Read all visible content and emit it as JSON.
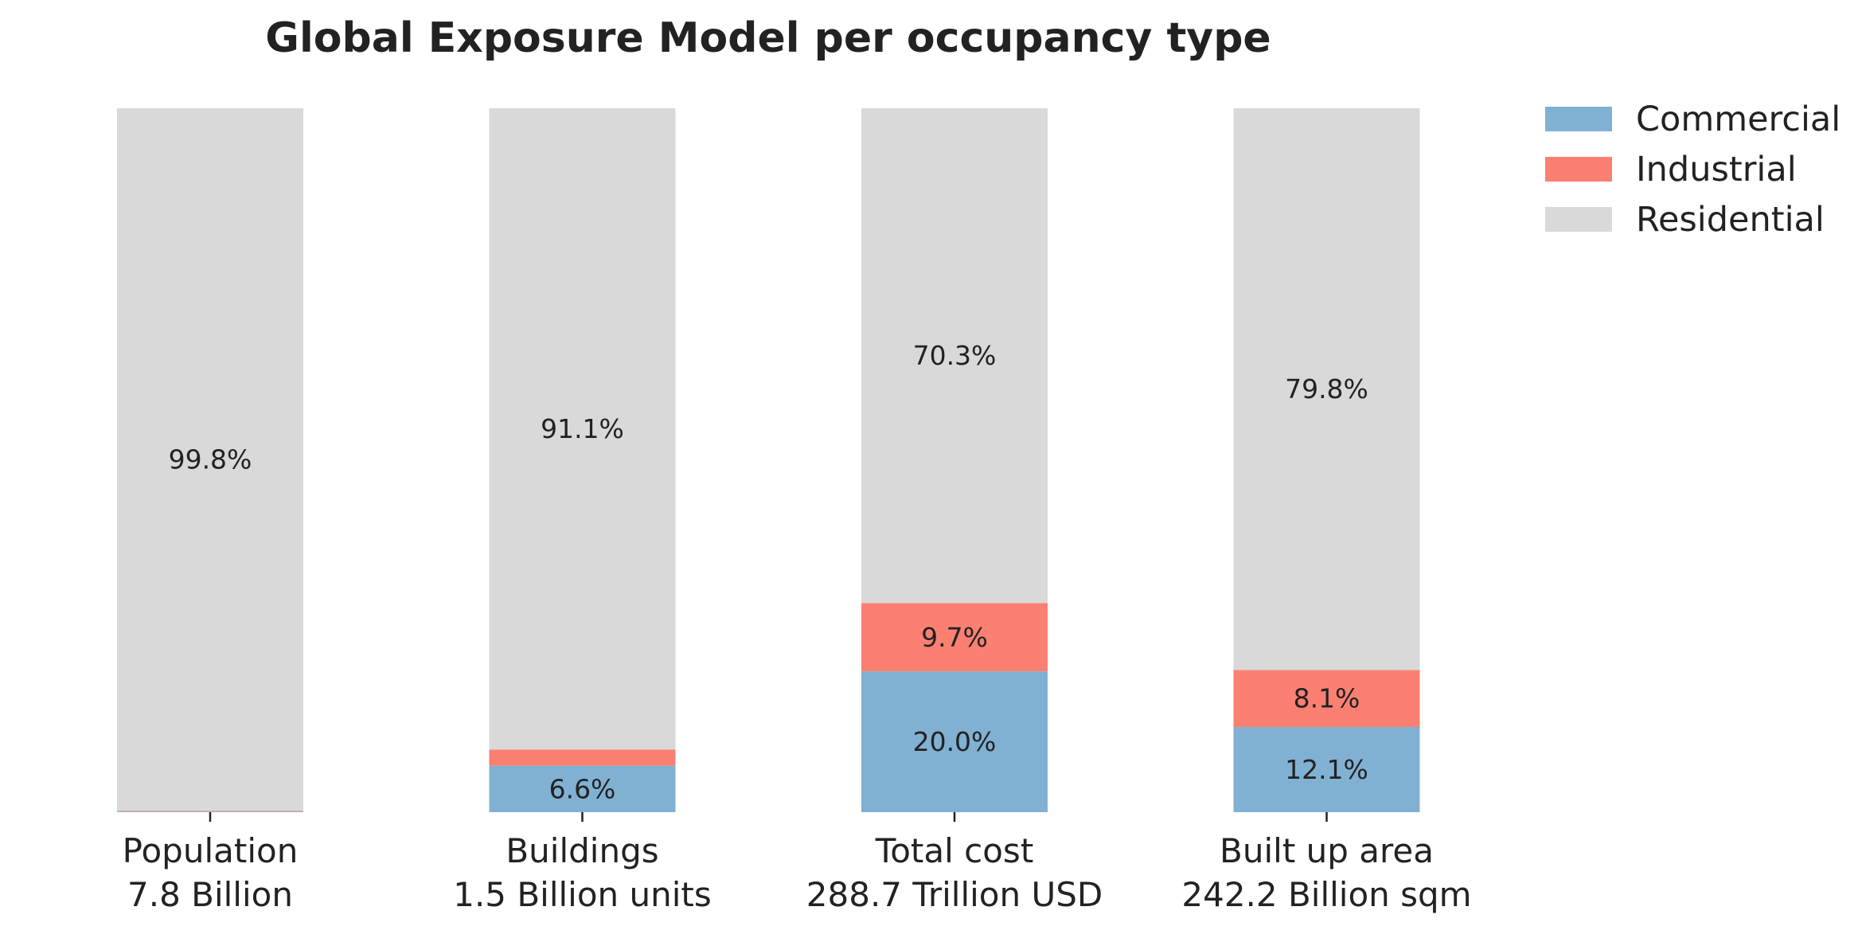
{
  "chart_data": {
    "type": "bar",
    "stacked": true,
    "normalized_percent": true,
    "title": "Global Exposure Model per occupancy type",
    "categories": [
      {
        "name": "Population",
        "total": "7.8 Billion"
      },
      {
        "name": "Buildings",
        "total": "1.5 Billion units"
      },
      {
        "name": "Total cost",
        "total": "288.7 Trillion USD"
      },
      {
        "name": "Built up area",
        "total": "242.2 Billion sqm"
      }
    ],
    "series": [
      {
        "name": "Commercial",
        "color": "#80b1d3",
        "values": [
          0.1,
          6.6,
          20.0,
          12.1
        ],
        "labels": [
          "",
          "6.6%",
          "20.0%",
          "12.1%"
        ]
      },
      {
        "name": "Industrial",
        "color": "#fb8072",
        "values": [
          0.1,
          2.3,
          9.7,
          8.1
        ],
        "labels": [
          "",
          "",
          "9.7%",
          "8.1%"
        ]
      },
      {
        "name": "Residential",
        "color": "#d9d9d9",
        "values": [
          99.8,
          91.1,
          70.3,
          79.8
        ],
        "labels": [
          "99.8%",
          "91.1%",
          "70.3%",
          "79.8%"
        ]
      }
    ],
    "ylim": [
      0,
      100
    ],
    "y_axis_visible": false,
    "grid": false,
    "legend": "right"
  }
}
